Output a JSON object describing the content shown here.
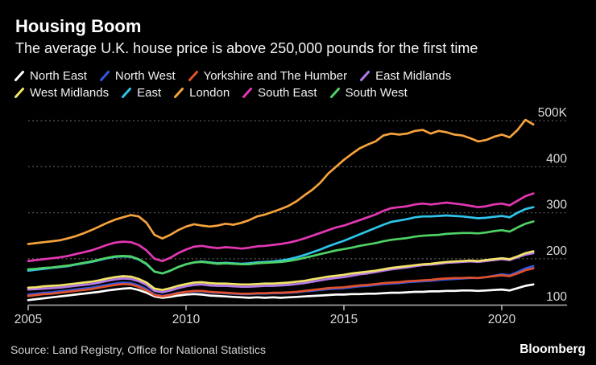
{
  "header": {
    "title": "Housing Boom",
    "subtitle": "The average U.K. house price is above 250,000 pounds for the first time"
  },
  "footer": {
    "source": "Source: Land Registry, Office for National Statistics",
    "logo": "Bloomberg"
  },
  "colors": {
    "background": "#000000",
    "grid": "#5c5c5c",
    "axis": "#b3b3b3",
    "tick_label": "#d9d9d9",
    "heading_text": "#ffffff"
  },
  "chart_data": {
    "type": "line",
    "title": "Housing Boom",
    "subtitle": "The average U.K. house price is above 250,000 pounds for the first time",
    "y_unit": "thousand pounds (GBP)",
    "grid": "horizontal-dotted",
    "legend_position": "top",
    "x_start": 2005,
    "x_step": 0.25,
    "xlim": [
      2005,
      2022.1
    ],
    "ylim": [
      100,
      510
    ],
    "x_ticks": [
      {
        "value": 2005,
        "label": "2005"
      },
      {
        "value": 2010,
        "label": "2010"
      },
      {
        "value": 2015,
        "label": "2015"
      },
      {
        "value": 2020,
        "label": "2020"
      }
    ],
    "y_ticks": [
      {
        "value": 100,
        "label": "100"
      },
      {
        "value": 200,
        "label": "200"
      },
      {
        "value": 300,
        "label": "300"
      },
      {
        "value": 400,
        "label": "400"
      },
      {
        "value": 500,
        "label": "500K"
      }
    ],
    "series": [
      {
        "name": "North East",
        "color": "#ffffff",
        "values": [
          110,
          112,
          114,
          116,
          118,
          120,
          122,
          124,
          126,
          128,
          131,
          133,
          135,
          136,
          132,
          126,
          118,
          115,
          117,
          120,
          122,
          123,
          122,
          120,
          119,
          118,
          117,
          116,
          115,
          116,
          115,
          116,
          115,
          116,
          117,
          118,
          119,
          120,
          121,
          122,
          122,
          123,
          123,
          124,
          124,
          125,
          126,
          126,
          127,
          128,
          128,
          129,
          129,
          130,
          130,
          131,
          131,
          130,
          131,
          132,
          133,
          131,
          136,
          141,
          144
        ]
      },
      {
        "name": "North West",
        "color": "#3157e2",
        "values": [
          122,
          124,
          126,
          127,
          129,
          131,
          133,
          135,
          137,
          140,
          143,
          146,
          148,
          147,
          142,
          134,
          122,
          119,
          122,
          126,
          128,
          129,
          129,
          127,
          126,
          125,
          124,
          123,
          123,
          124,
          124,
          125,
          125,
          126,
          127,
          129,
          130,
          132,
          134,
          135,
          136,
          138,
          140,
          141,
          143,
          145,
          146,
          147,
          149,
          150,
          151,
          152,
          154,
          155,
          156,
          157,
          158,
          158,
          160,
          163,
          166,
          164,
          171,
          179,
          184
        ]
      },
      {
        "name": "Yorkshire and The Humber",
        "color": "#e0512c",
        "values": [
          119,
          121,
          123,
          124,
          126,
          128,
          130,
          132,
          134,
          137,
          140,
          143,
          145,
          144,
          139,
          131,
          121,
          118,
          121,
          125,
          128,
          130,
          130,
          128,
          127,
          126,
          125,
          124,
          124,
          125,
          125,
          126,
          126,
          127,
          128,
          130,
          132,
          134,
          136,
          137,
          138,
          140,
          142,
          143,
          145,
          147,
          148,
          149,
          151,
          152,
          153,
          154,
          156,
          157,
          158,
          158,
          159,
          158,
          160,
          162,
          164,
          162,
          168,
          175,
          179
        ]
      },
      {
        "name": "East Midlands",
        "color": "#b57ae8",
        "values": [
          133,
          134,
          135,
          136,
          137,
          139,
          141,
          143,
          145,
          148,
          152,
          155,
          157,
          156,
          151,
          143,
          130,
          127,
          131,
          136,
          140,
          143,
          144,
          142,
          141,
          141,
          140,
          139,
          139,
          140,
          141,
          141,
          142,
          143,
          145,
          147,
          150,
          153,
          156,
          158,
          160,
          163,
          166,
          168,
          171,
          174,
          177,
          179,
          181,
          184,
          186,
          187,
          189,
          191,
          192,
          193,
          194,
          193,
          195,
          197,
          199,
          197,
          203,
          209,
          212
        ]
      },
      {
        "name": "West Midlands",
        "color": "#f2e468",
        "values": [
          137,
          138,
          140,
          141,
          142,
          144,
          146,
          148,
          150,
          153,
          157,
          160,
          162,
          161,
          156,
          148,
          135,
          132,
          136,
          141,
          145,
          148,
          149,
          147,
          146,
          146,
          145,
          144,
          144,
          145,
          146,
          146,
          147,
          148,
          150,
          152,
          155,
          158,
          161,
          163,
          165,
          168,
          170,
          172,
          174,
          177,
          180,
          182,
          184,
          186,
          188,
          189,
          191,
          193,
          194,
          195,
          196,
          195,
          197,
          199,
          201,
          199,
          205,
          212,
          216
        ]
      },
      {
        "name": "East",
        "color": "#2fc4ea",
        "values": [
          174,
          176,
          178,
          180,
          182,
          184,
          187,
          190,
          193,
          197,
          201,
          204,
          205,
          204,
          198,
          188,
          172,
          168,
          174,
          182,
          188,
          192,
          194,
          192,
          190,
          191,
          190,
          189,
          190,
          192,
          193,
          194,
          196,
          199,
          203,
          208,
          214,
          220,
          227,
          233,
          239,
          246,
          253,
          260,
          267,
          274,
          280,
          283,
          286,
          290,
          292,
          292,
          293,
          294,
          293,
          292,
          290,
          288,
          289,
          291,
          293,
          290,
          300,
          308,
          312
        ]
      },
      {
        "name": "London",
        "color": "#f5a23c",
        "values": [
          232,
          234,
          236,
          238,
          240,
          244,
          249,
          255,
          262,
          270,
          278,
          285,
          290,
          295,
          292,
          278,
          252,
          244,
          252,
          262,
          270,
          275,
          272,
          270,
          272,
          276,
          274,
          278,
          284,
          292,
          296,
          302,
          308,
          315,
          325,
          338,
          350,
          365,
          385,
          400,
          415,
          428,
          440,
          448,
          455,
          468,
          472,
          470,
          472,
          478,
          480,
          472,
          478,
          475,
          470,
          468,
          462,
          455,
          458,
          465,
          470,
          464,
          480,
          502,
          492
        ]
      },
      {
        "name": "South East",
        "color": "#e437b3",
        "values": [
          195,
          197,
          199,
          201,
          203,
          206,
          210,
          214,
          218,
          224,
          230,
          235,
          237,
          236,
          230,
          218,
          200,
          195,
          202,
          212,
          220,
          226,
          228,
          225,
          223,
          225,
          224,
          222,
          224,
          227,
          228,
          230,
          232,
          235,
          239,
          244,
          250,
          256,
          262,
          268,
          272,
          278,
          284,
          290,
          296,
          304,
          310,
          312,
          314,
          318,
          320,
          318,
          320,
          322,
          320,
          318,
          315,
          312,
          314,
          318,
          320,
          316,
          326,
          336,
          342
        ]
      },
      {
        "name": "South West",
        "color": "#4fd166",
        "values": [
          177,
          178,
          180,
          181,
          183,
          185,
          188,
          191,
          194,
          198,
          202,
          205,
          206,
          205,
          199,
          189,
          172,
          168,
          174,
          182,
          188,
          192,
          193,
          191,
          189,
          190,
          189,
          188,
          188,
          190,
          191,
          192,
          193,
          195,
          198,
          202,
          206,
          210,
          214,
          218,
          221,
          224,
          228,
          231,
          234,
          238,
          241,
          243,
          245,
          248,
          250,
          251,
          252,
          254,
          255,
          256,
          256,
          255,
          257,
          260,
          262,
          259,
          268,
          276,
          281
        ]
      }
    ]
  }
}
